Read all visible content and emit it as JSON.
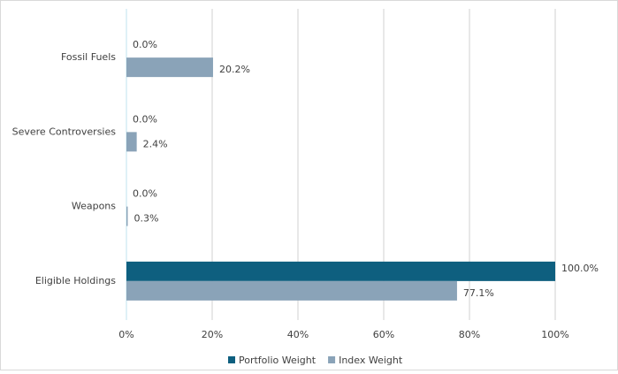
{
  "chart_data": {
    "type": "barh",
    "categories": [
      "Fossil Fuels",
      "Severe Controversies",
      "Weapons",
      "Eligible Holdings"
    ],
    "series": [
      {
        "name": "Portfolio Weight",
        "color": "#0e5f7f",
        "values": [
          0,
          0,
          0,
          100
        ],
        "value_labels": [
          "0.0%",
          "0.0%",
          "0.0%",
          "100.0%"
        ]
      },
      {
        "name": "Index Weight",
        "color": "#8aa3b8",
        "values": [
          20.2,
          2.4,
          0.3,
          77.1
        ],
        "value_labels": [
          "20.2%",
          "2.4%",
          "0.3%",
          "77.1%"
        ]
      }
    ],
    "xlim": [
      0,
      100
    ],
    "xticks": [
      {
        "value": 0,
        "label": "0%"
      },
      {
        "value": 20,
        "label": "20%"
      },
      {
        "value": 40,
        "label": "40%"
      },
      {
        "value": 60,
        "label": "60%"
      },
      {
        "value": 80,
        "label": "80%"
      },
      {
        "value": 100,
        "label": "100%"
      }
    ],
    "grid": true,
    "legend": "bottom"
  }
}
